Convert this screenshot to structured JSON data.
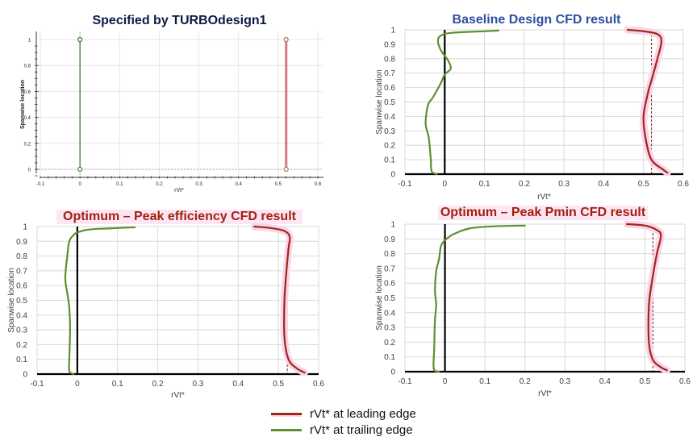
{
  "colors": {
    "leading": "#9a2a12",
    "trailing": "#5e8f2f",
    "td_leading": "#a37a63",
    "td_trailing": "#3d7d32",
    "title_td": "#0e1a44",
    "title_baseline": "#2e4fa0",
    "title_opt": "#a3200f",
    "grid": "#d9d9d9",
    "axis": "#000000"
  },
  "legend": {
    "items": [
      {
        "label": "rVt* at leading edge",
        "color": "#9a2a12"
      },
      {
        "label": "rVt* at trailing edge",
        "color": "#5e8f2f"
      }
    ]
  },
  "chart_data": [
    {
      "id": "td1",
      "type": "line",
      "title": "Specified by TURBOdesign1",
      "xlabel": "rVt*",
      "ylabel": "Spanwise location",
      "xlim": [
        -0.1,
        0.6
      ],
      "ylim": [
        0,
        1
      ],
      "x_ticks": [
        "-0.1",
        "0",
        "0.1",
        "0.2",
        "0.3",
        "0.4",
        "0.5",
        "0.6"
      ],
      "y_ticks": [
        "0",
        "0.2",
        "0.4",
        "0.6",
        "0.8",
        "1"
      ],
      "grid": true,
      "series": [
        {
          "name": "rVt* at trailing edge",
          "points": [
            [
              0,
              0
            ],
            [
              0,
              1
            ]
          ],
          "markers": true
        },
        {
          "name": "rVt* at leading edge",
          "points": [
            [
              0.52,
              0
            ],
            [
              0.52,
              1
            ]
          ],
          "markers": true
        }
      ]
    },
    {
      "id": "baseline",
      "type": "line",
      "title": "Baseline Design CFD result",
      "xlabel": "rVt*",
      "ylabel": "Spanwise location",
      "xlim": [
        -0.1,
        0.6
      ],
      "ylim": [
        0,
        1
      ],
      "x_ticks": [
        "-0.1",
        "0",
        "0.1",
        "0.2",
        "0.3",
        "0.4",
        "0.5",
        "0.6"
      ],
      "y_ticks": [
        "0",
        "0.1",
        "0.2",
        "0.3",
        "0.4",
        "0.5",
        "0.6",
        "0.7",
        "0.8",
        "0.9",
        "1"
      ],
      "grid": true,
      "reference_line_x": 0.52,
      "series": [
        {
          "name": "rVt* at trailing edge",
          "points": [
            [
              -0.02,
              0.0
            ],
            [
              -0.033,
              0.02
            ],
            [
              -0.035,
              0.1
            ],
            [
              -0.04,
              0.25
            ],
            [
              -0.048,
              0.35
            ],
            [
              -0.042,
              0.48
            ],
            [
              -0.03,
              0.53
            ],
            [
              -0.01,
              0.63
            ],
            [
              0.0,
              0.69
            ],
            [
              0.015,
              0.73
            ],
            [
              0.01,
              0.78
            ],
            [
              0.0,
              0.82
            ],
            [
              -0.01,
              0.86
            ],
            [
              -0.017,
              0.92
            ],
            [
              -0.01,
              0.96
            ],
            [
              0.02,
              0.98
            ],
            [
              0.1,
              0.99
            ],
            [
              0.135,
              0.995
            ]
          ]
        },
        {
          "name": "rVt* at leading edge",
          "points": [
            [
              0.56,
              0.01
            ],
            [
              0.55,
              0.03
            ],
            [
              0.52,
              0.1
            ],
            [
              0.505,
              0.25
            ],
            [
              0.5,
              0.4
            ],
            [
              0.51,
              0.55
            ],
            [
              0.52,
              0.65
            ],
            [
              0.535,
              0.8
            ],
            [
              0.545,
              0.92
            ],
            [
              0.535,
              0.97
            ],
            [
              0.5,
              0.99
            ],
            [
              0.46,
              1.0
            ]
          ]
        }
      ]
    },
    {
      "id": "opt_eff",
      "type": "line",
      "title": "Optimum – Peak efficiency CFD result",
      "xlabel": "rVt*",
      "ylabel": "Spanwise location",
      "xlim": [
        -0.1,
        0.6
      ],
      "ylim": [
        0,
        1
      ],
      "x_ticks": [
        "-0.1",
        "0",
        "0.1",
        "0.2",
        "0.3",
        "0.4",
        "0.5",
        "0.6"
      ],
      "y_ticks": [
        "0",
        "0.1",
        "0.2",
        "0.3",
        "0.4",
        "0.5",
        "0.6",
        "0.7",
        "0.8",
        "0.9",
        "1"
      ],
      "grid": true,
      "reference_line_x": 0.522,
      "series": [
        {
          "name": "rVt* at trailing edge",
          "points": [
            [
              -0.01,
              0.0
            ],
            [
              -0.02,
              0.02
            ],
            [
              -0.02,
              0.1
            ],
            [
              -0.018,
              0.3
            ],
            [
              -0.02,
              0.45
            ],
            [
              -0.025,
              0.55
            ],
            [
              -0.03,
              0.65
            ],
            [
              -0.025,
              0.8
            ],
            [
              -0.02,
              0.9
            ],
            [
              -0.01,
              0.94
            ],
            [
              0.0,
              0.96
            ],
            [
              0.03,
              0.98
            ],
            [
              0.1,
              0.99
            ],
            [
              0.143,
              0.995
            ]
          ]
        },
        {
          "name": "rVt* at leading edge",
          "points": [
            [
              0.565,
              0.01
            ],
            [
              0.545,
              0.04
            ],
            [
              0.525,
              0.1
            ],
            [
              0.515,
              0.25
            ],
            [
              0.515,
              0.5
            ],
            [
              0.52,
              0.7
            ],
            [
              0.525,
              0.85
            ],
            [
              0.528,
              0.93
            ],
            [
              0.515,
              0.97
            ],
            [
              0.48,
              0.99
            ],
            [
              0.44,
              1.0
            ]
          ]
        }
      ]
    },
    {
      "id": "opt_pmin",
      "type": "line",
      "title": "Optimum – Peak Pmin CFD result",
      "xlabel": "rVt*",
      "ylabel": "Spanwise location",
      "xlim": [
        -0.1,
        0.6
      ],
      "ylim": [
        0,
        1
      ],
      "x_ticks": [
        "-0.1",
        "0",
        "0.1",
        "0.2",
        "0.3",
        "0.4",
        "0.5",
        "0.6"
      ],
      "y_ticks": [
        "0",
        "0.1",
        "0.2",
        "0.3",
        "0.4",
        "0.5",
        "0.6",
        "0.7",
        "0.8",
        "0.9",
        "1"
      ],
      "grid": true,
      "reference_line_x": 0.52,
      "series": [
        {
          "name": "rVt* at trailing edge",
          "points": [
            [
              -0.015,
              0.0
            ],
            [
              -0.028,
              0.02
            ],
            [
              -0.027,
              0.15
            ],
            [
              -0.025,
              0.35
            ],
            [
              -0.022,
              0.45
            ],
            [
              -0.025,
              0.55
            ],
            [
              -0.022,
              0.68
            ],
            [
              -0.015,
              0.76
            ],
            [
              -0.01,
              0.85
            ],
            [
              0.0,
              0.89
            ],
            [
              0.02,
              0.93
            ],
            [
              0.06,
              0.97
            ],
            [
              0.12,
              0.985
            ],
            [
              0.2,
              0.99
            ]
          ]
        },
        {
          "name": "rVt* at leading edge",
          "points": [
            [
              0.555,
              0.01
            ],
            [
              0.54,
              0.03
            ],
            [
              0.52,
              0.08
            ],
            [
              0.51,
              0.2
            ],
            [
              0.51,
              0.45
            ],
            [
              0.52,
              0.65
            ],
            [
              0.53,
              0.8
            ],
            [
              0.54,
              0.92
            ],
            [
              0.53,
              0.96
            ],
            [
              0.5,
              0.99
            ],
            [
              0.455,
              1.0
            ]
          ]
        }
      ]
    }
  ]
}
